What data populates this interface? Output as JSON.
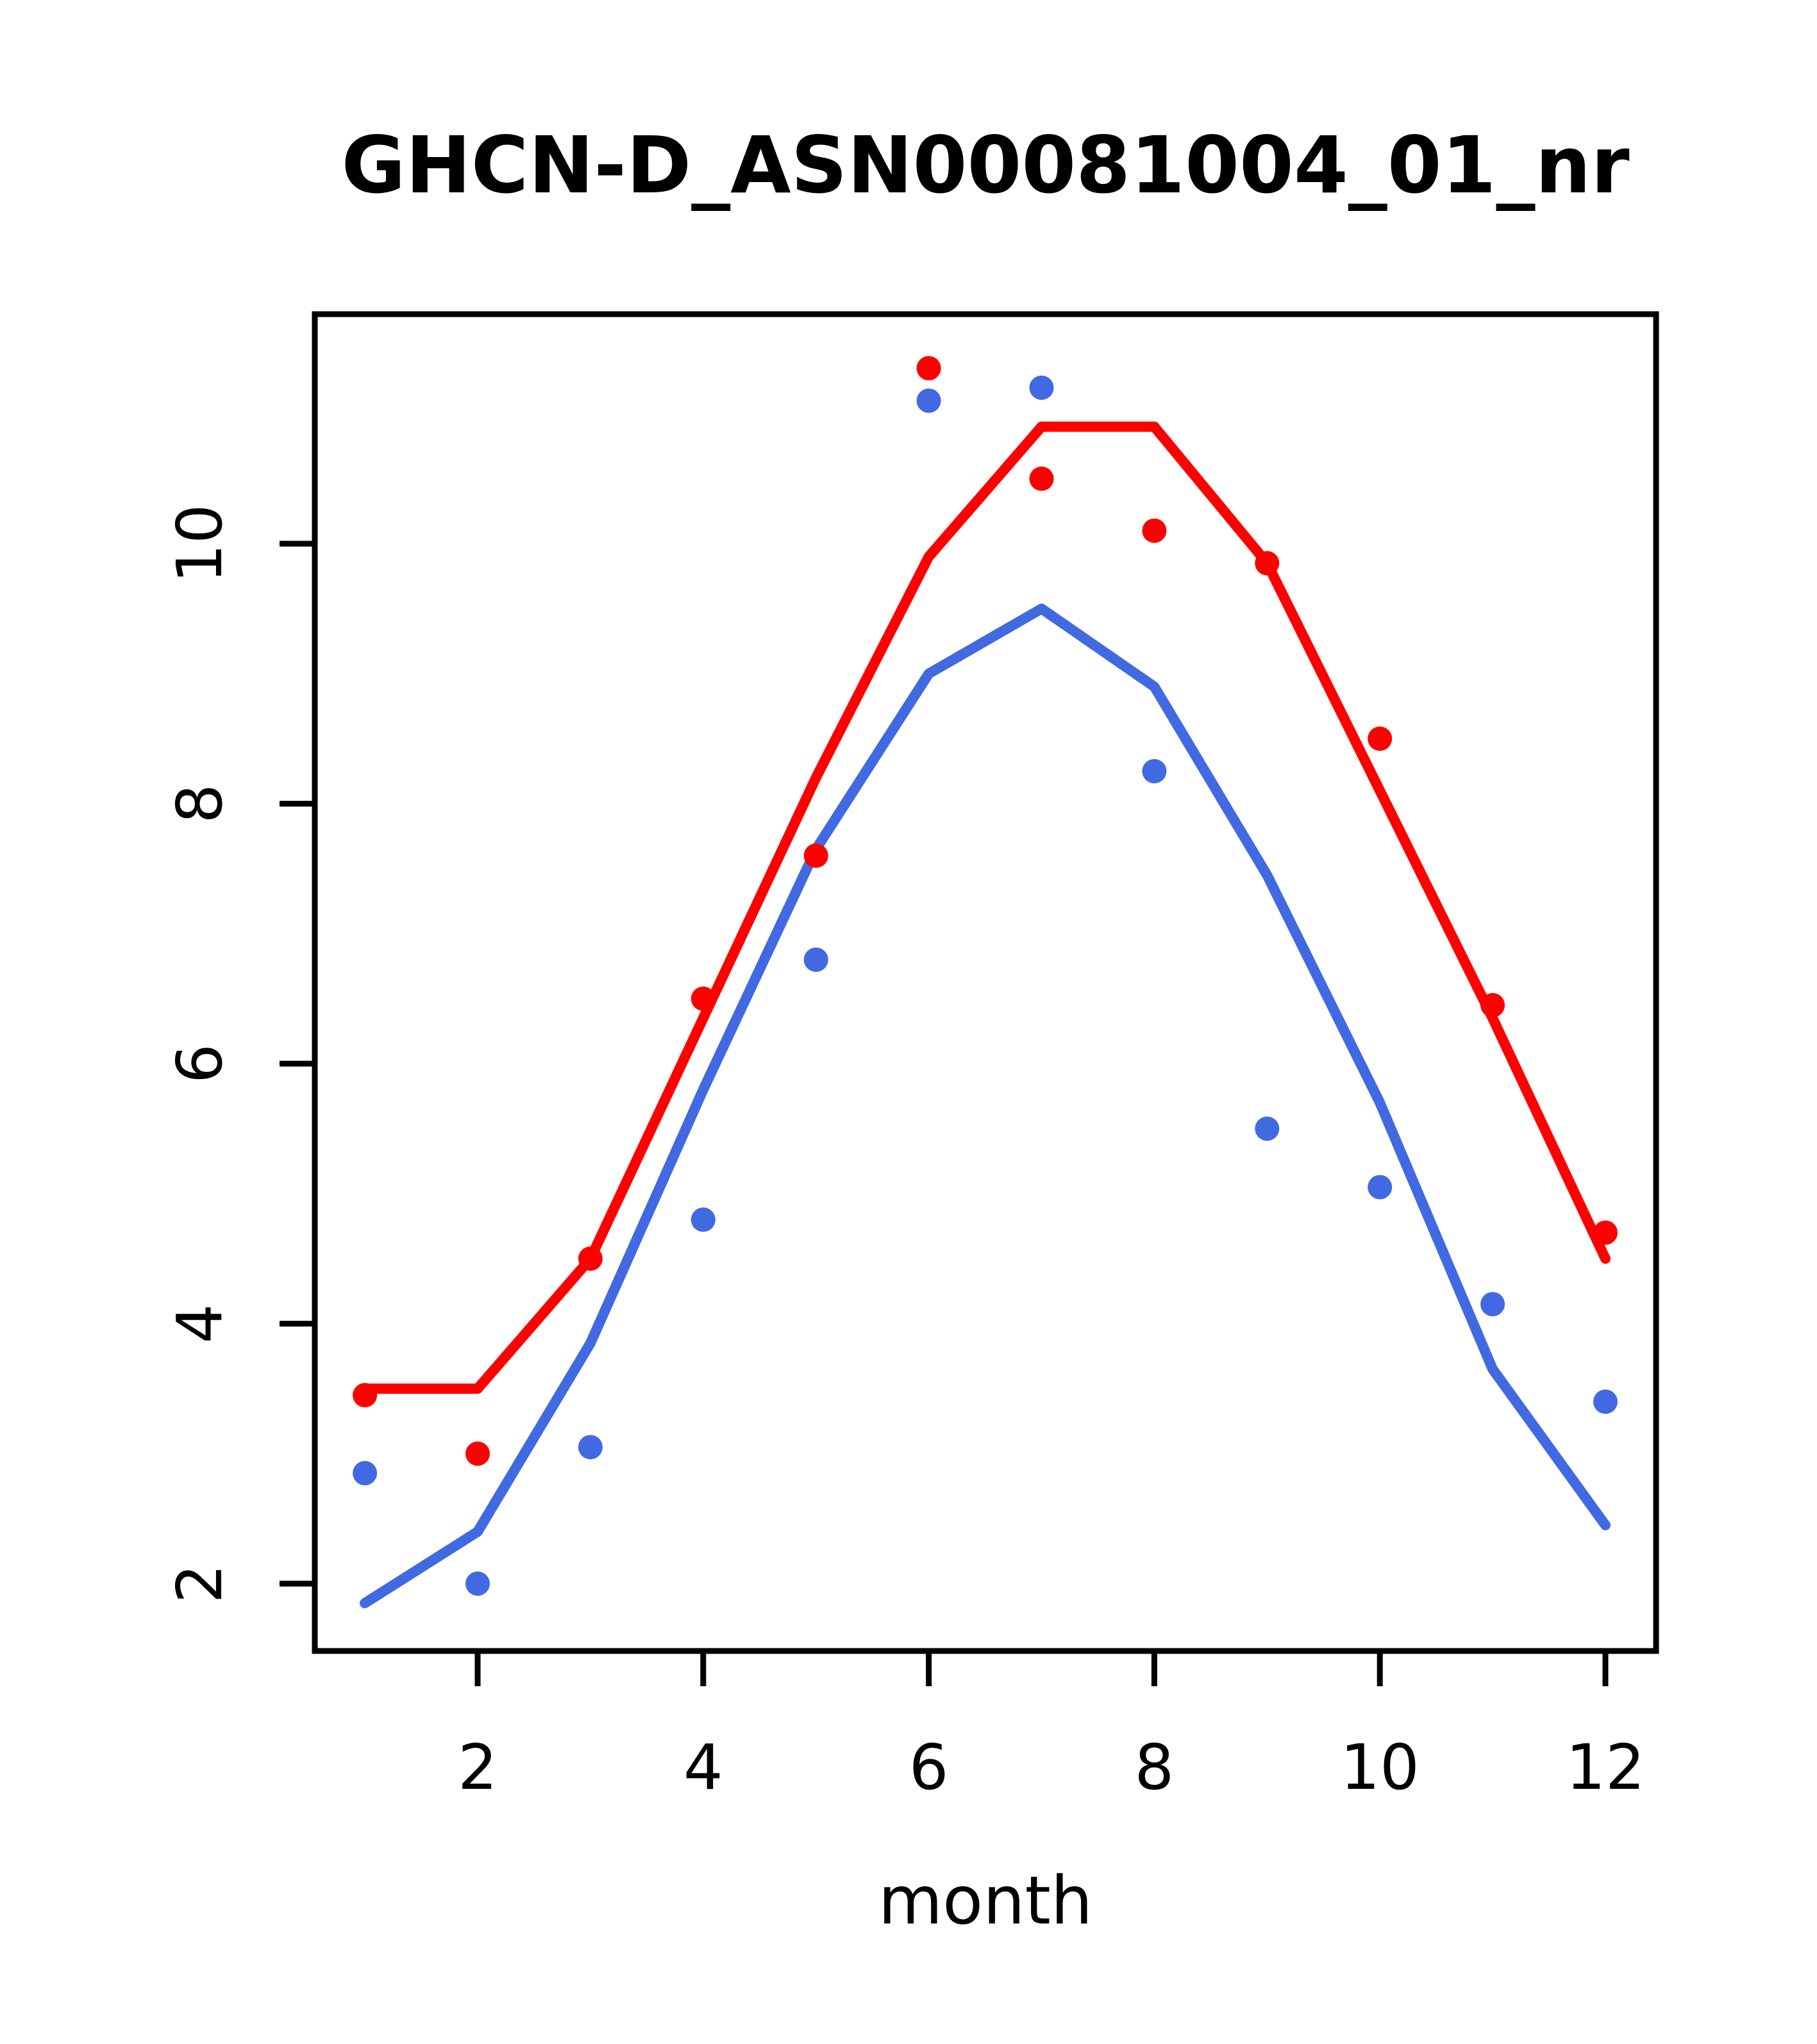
{
  "title": "GHCN-D_ASN00081004_01_nr",
  "xlabel": "month",
  "colors": {
    "red": "#ff0000",
    "blue": "#4169e1",
    "axis": "#000000",
    "background": "#ffffff"
  },
  "chart_data": {
    "type": "line",
    "title": "GHCN-D_ASN00081004_01_nr",
    "xlabel": "month",
    "ylabel": "",
    "x": [
      1,
      2,
      3,
      4,
      5,
      6,
      7,
      8,
      9,
      10,
      11,
      12
    ],
    "x_ticks": [
      2,
      4,
      6,
      8,
      10,
      12
    ],
    "y_ticks": [
      2,
      4,
      6,
      8,
      10
    ],
    "xlim": [
      0.56,
      12.44
    ],
    "ylim": [
      1.48,
      11.77
    ],
    "grid": false,
    "legend": "none",
    "series": [
      {
        "name": "red-points",
        "type": "scatter",
        "color": "#ff0000",
        "values": [
          3.45,
          3.0,
          4.5,
          6.5,
          7.6,
          11.35,
          10.5,
          10.1,
          9.85,
          8.5,
          6.45,
          4.7
        ]
      },
      {
        "name": "blue-points",
        "type": "scatter",
        "color": "#4169e1",
        "values": [
          2.85,
          2.0,
          3.05,
          4.8,
          6.8,
          11.1,
          11.2,
          8.25,
          5.5,
          5.05,
          4.15,
          3.4
        ]
      },
      {
        "name": "red-line",
        "type": "line",
        "color": "#ff0000",
        "values": [
          3.5,
          3.5,
          4.5,
          6.35,
          8.2,
          9.9,
          10.9,
          10.9,
          9.85,
          8.1,
          6.35,
          4.5
        ]
      },
      {
        "name": "blue-line",
        "type": "line",
        "color": "#4169e1",
        "values": [
          1.85,
          2.4,
          3.85,
          5.8,
          7.65,
          9.0,
          9.5,
          8.9,
          7.45,
          5.7,
          3.65,
          2.45
        ]
      }
    ]
  }
}
